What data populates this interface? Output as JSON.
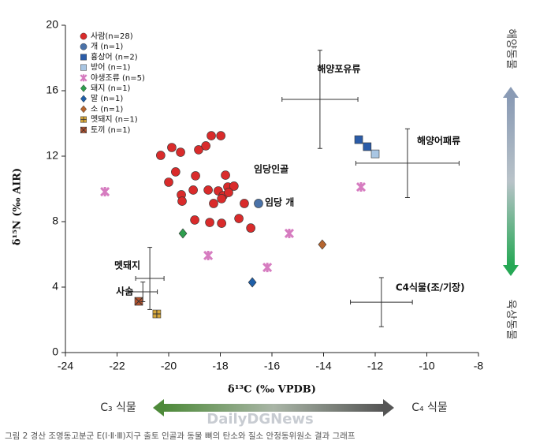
{
  "chart_data": {
    "type": "scatter",
    "x_label": "δ¹³C (‰ VPDB)",
    "y_label": "δ¹⁵N (‰ AIR)",
    "xlim": [
      -24,
      -8
    ],
    "xticks": [
      -24,
      -22,
      -20,
      -18,
      -16,
      -14,
      -12,
      -10,
      -8
    ],
    "ylim": [
      0,
      20
    ],
    "yticks": [
      0,
      4,
      8,
      12,
      16,
      20
    ],
    "legend": "upper left",
    "series": [
      {
        "name": "사람(n=28)",
        "marker": "circle",
        "color": "#d92b2b",
        "x": [
          -20.31,
          -19.88,
          -19.54,
          -18.84,
          -18.56,
          -18.35,
          -17.98,
          -20.0,
          -19.73,
          -19.51,
          -19.05,
          -18.96,
          -18.47,
          -18.08,
          -17.89,
          -17.8,
          -17.71,
          -17.47,
          -17.95,
          -18.26,
          -17.28,
          -17.07,
          -16.82,
          -18.99,
          -18.41,
          -17.95,
          -19.48,
          -17.68
        ],
        "y": [
          12.05,
          12.53,
          12.24,
          12.39,
          12.63,
          13.25,
          13.25,
          10.41,
          11.04,
          9.64,
          9.93,
          10.8,
          9.93,
          9.88,
          9.59,
          10.84,
          10.12,
          10.17,
          9.4,
          9.11,
          8.19,
          9.11,
          7.61,
          8.1,
          7.95,
          7.9,
          9.25,
          9.78
        ]
      },
      {
        "name": "개 (n=1)",
        "marker": "circle",
        "color": "#4a72a8",
        "x": [
          -16.52
        ],
        "y": [
          9.11
        ]
      },
      {
        "name": "흉상어 (n=2)",
        "marker": "square",
        "color": "#2b5ca8",
        "x": [
          -12.64,
          -12.31
        ],
        "y": [
          13.01,
          12.58
        ]
      },
      {
        "name": "방어 (n=1)",
        "marker": "square",
        "color": "#a9c6e3",
        "x": [
          -12.0
        ],
        "y": [
          12.14
        ]
      },
      {
        "name": "야생조류 (n=5)",
        "marker": "x",
        "color": "#d67cc0",
        "x": [
          -22.47,
          -12.55,
          -15.33,
          -16.18,
          -18.47
        ],
        "y": [
          9.83,
          10.12,
          7.28,
          5.2,
          5.93
        ]
      },
      {
        "name": "돼지 (n=1)",
        "marker": "diamond",
        "color": "#2e9e4e",
        "x": [
          -19.45
        ],
        "y": [
          7.28
        ]
      },
      {
        "name": "말 (n=1)",
        "marker": "diamond",
        "color": "#1f5fa8",
        "x": [
          -16.76
        ],
        "y": [
          4.29
        ]
      },
      {
        "name": "소 (n=1)",
        "marker": "diamond",
        "color": "#b5652f",
        "x": [
          -14.05
        ],
        "y": [
          6.6
        ]
      },
      {
        "name": "멧돼지 (n=1)",
        "marker": "square-plus",
        "color": "#d4a53a",
        "x": [
          -20.46
        ],
        "y": [
          2.36
        ]
      },
      {
        "name": "토끼 (n=1)",
        "marker": "square-x",
        "color": "#b5522d",
        "x": [
          -21.16
        ],
        "y": [
          3.13
        ]
      }
    ],
    "references": [
      {
        "label": "해양포유류",
        "x": -14.14,
        "y": 15.47,
        "xerr": 1.47,
        "yerr": 3.0
      },
      {
        "label": "해양어패류",
        "x": -10.75,
        "y": 11.57,
        "xerr": 2.0,
        "yerr": 2.1
      },
      {
        "label": "C4식물(조/기장)",
        "x": -11.76,
        "y": 3.08,
        "xerr": 1.2,
        "yerr": 1.5
      },
      {
        "label": "멧돼지",
        "x": -20.73,
        "y": 4.53,
        "xerr": 0.55,
        "yerr": 1.9
      },
      {
        "label": "사슴",
        "x": -21.0,
        "y": 3.71,
        "xerr": 0.56,
        "yerr": 0.6
      }
    ],
    "annotations": [
      "임당인골",
      "임당 개"
    ],
    "marine_label": "해양동물",
    "terrestrial_label": "육상동물",
    "c3_label": "C₃ 식물",
    "c4_label": "C₄ 식물",
    "watermark": "DailyDGNews",
    "caption": "그림 2 경산 조영동고분군 E(Ⅰ·Ⅱ·Ⅲ)지구 출토 인골과 동물 뼈의 탄소와 질소 안정동위원소 결과 그래프"
  }
}
